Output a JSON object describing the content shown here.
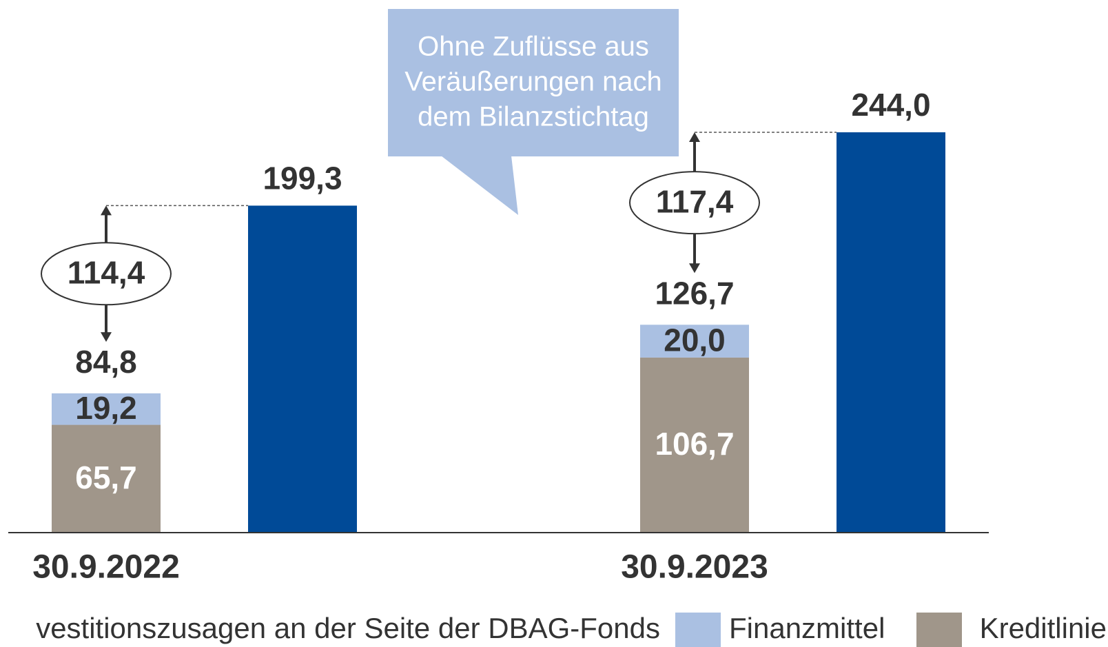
{
  "chart_data": {
    "type": "bar",
    "categories": [
      "30.9.2022",
      "30.9.2023"
    ],
    "series": [
      {
        "name": "Kreditlinie",
        "color": "#a0968a",
        "values": [
          65.7,
          106.7
        ],
        "value_labels": [
          "65,7",
          "106,7"
        ]
      },
      {
        "name": "Finanzmittel",
        "color": "#aac0e2",
        "values": [
          19.2,
          20.0
        ],
        "value_labels": [
          "19,2",
          "20,0"
        ]
      },
      {
        "name": "vestitionszusagen an der Seite der DBAG-Fonds",
        "color": "#004a97",
        "values": [
          199.3,
          244.0
        ],
        "value_labels": [
          "199,3",
          "244,0"
        ]
      }
    ],
    "totals": [
      84.8,
      126.7
    ],
    "total_labels": [
      "84,8",
      "126,7"
    ],
    "differences": [
      114.4,
      117.4
    ],
    "difference_labels": [
      "114,4",
      "117,4"
    ],
    "annotation": [
      "Ohne Zuflüsse aus",
      "Veräußerungen nach",
      "dem Bilanzstichtag"
    ],
    "ylim": [
      0,
      244.0
    ]
  }
}
